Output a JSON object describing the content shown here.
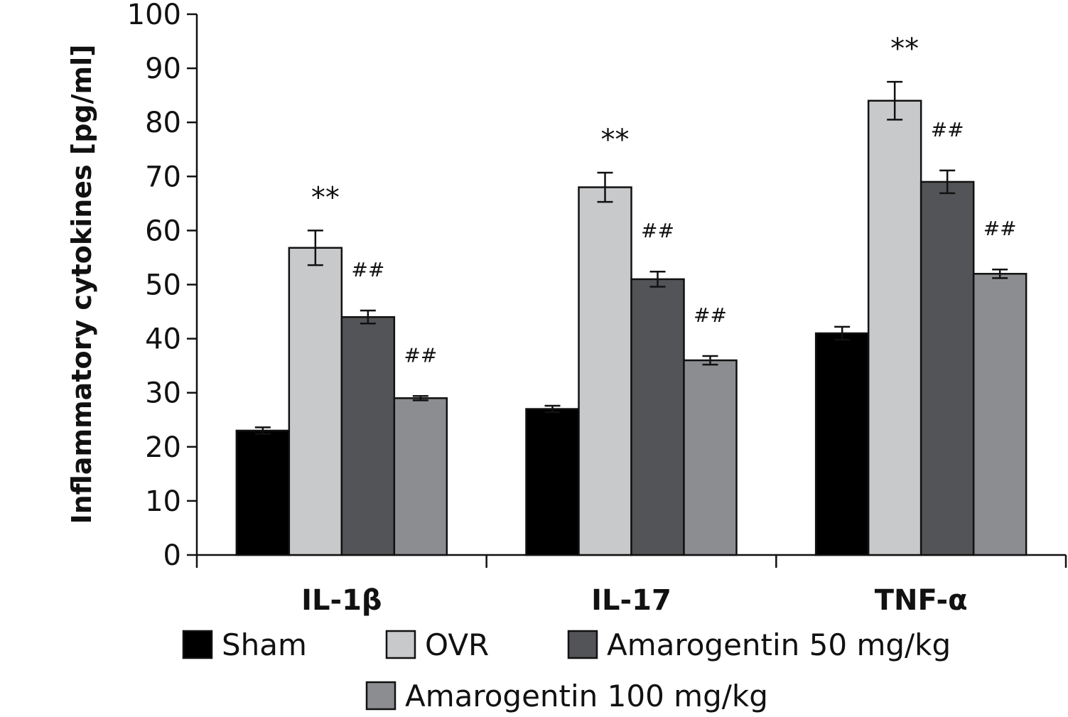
{
  "chart_data": {
    "type": "bar",
    "title": "",
    "xlabel": "",
    "ylabel": "Inflammatory cytokines [pg/ml]",
    "ylim": [
      0,
      100
    ],
    "yticks": [
      0,
      10,
      20,
      30,
      40,
      50,
      60,
      70,
      80,
      90,
      100
    ],
    "grid": false,
    "legend_position": "bottom",
    "categories": [
      "IL-1β",
      "IL-17",
      "TNF-α"
    ],
    "series": [
      {
        "name": "Sham",
        "color": "#000000",
        "values": [
          23,
          27,
          41
        ],
        "errors": [
          0.6,
          0.6,
          1.2
        ],
        "annotations": [
          "",
          "",
          ""
        ]
      },
      {
        "name": "OVR",
        "color": "#c8c9cb",
        "values": [
          56.8,
          68,
          84
        ],
        "errors": [
          3.2,
          2.7,
          3.5
        ],
        "annotations": [
          "**",
          "**",
          "**"
        ]
      },
      {
        "name": "Amarogentin 50 mg/kg",
        "color": "#535457",
        "values": [
          44,
          51,
          69
        ],
        "errors": [
          1.2,
          1.4,
          2.1
        ],
        "annotations": [
          "##",
          "##",
          "##"
        ]
      },
      {
        "name": "Amarogentin 100 mg/kg",
        "color": "#8c8d90",
        "values": [
          29,
          36,
          52
        ],
        "errors": [
          0.4,
          0.8,
          0.8
        ],
        "annotations": [
          "##",
          "##",
          "##"
        ]
      }
    ]
  }
}
